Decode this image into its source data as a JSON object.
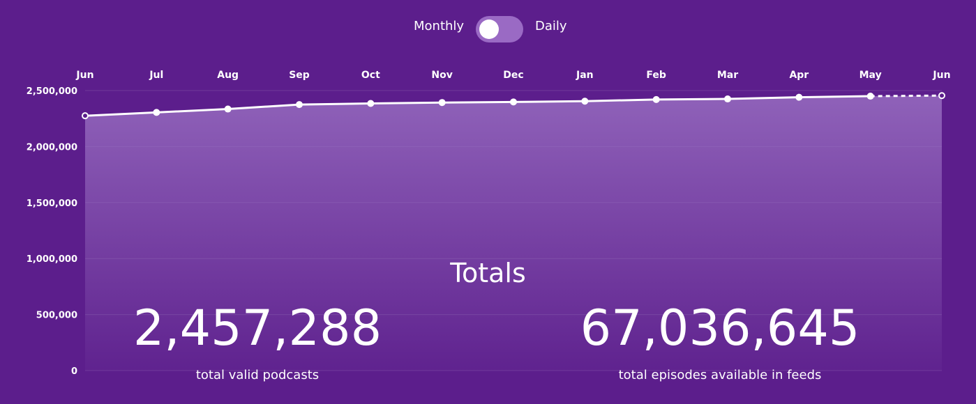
{
  "toggle": {
    "left_label": "Monthly",
    "right_label": "Daily",
    "selected": "Monthly"
  },
  "colors": {
    "background": "#5c1e8c",
    "line": "#ffffff",
    "area_top": "#a078c8",
    "toggle_track": "#9a6ac4"
  },
  "chart_data": {
    "type": "area",
    "title": "",
    "xlabel": "",
    "ylabel": "",
    "categories": [
      "Jun",
      "Jul",
      "Aug",
      "Sep",
      "Oct",
      "Nov",
      "Dec",
      "Jan",
      "Feb",
      "Mar",
      "Apr",
      "May",
      "Jun"
    ],
    "y_ticks": [
      "2,500,000",
      "2,000,000",
      "1,500,000",
      "1,000,000",
      "500,000",
      "0"
    ],
    "y_tick_values": [
      2500000,
      2000000,
      1500000,
      1000000,
      500000,
      0
    ],
    "ylim": [
      0,
      2500000
    ],
    "grid": true,
    "series": [
      {
        "values": [
          2275000,
          2305000,
          2335000,
          2375000,
          2385000,
          2393000,
          2398000,
          2405000,
          2420000,
          2425000,
          2440000,
          2450000,
          2455000
        ],
        "projected_from_index": 11
      }
    ],
    "x_axis_position": "top"
  },
  "totals": {
    "title": "Totals",
    "podcasts_value": "2,457,288",
    "podcasts_caption": "total valid podcasts",
    "episodes_value": "67,036,645",
    "episodes_caption": "total episodes available in feeds"
  }
}
